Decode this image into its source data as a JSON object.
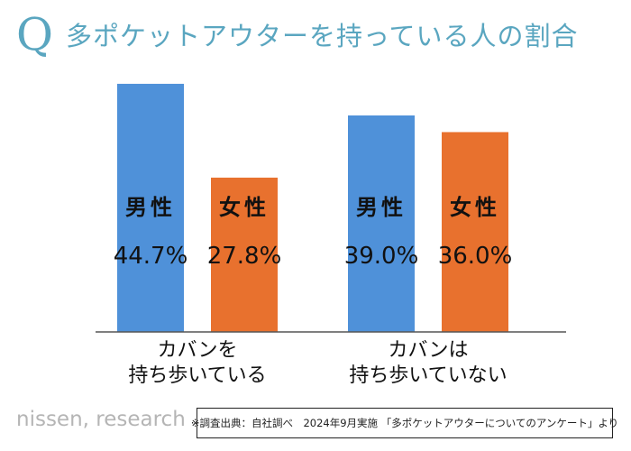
{
  "title": {
    "mark": "Q",
    "text": "多ポケットアウターを持っている人の割合"
  },
  "chart_data": {
    "type": "bar",
    "title": "多ポケットアウターを持っている人の割合",
    "categories": [
      {
        "lines": [
          "カバンを",
          "持ち歩いている"
        ]
      },
      {
        "lines": [
          "カバンは",
          "持ち歩いていない"
        ]
      }
    ],
    "series": [
      {
        "name": "男性",
        "color": "#4f91d9",
        "values": [
          44.7,
          39.0
        ],
        "value_labels": [
          "44.7%",
          "39.0%"
        ]
      },
      {
        "name": "女性",
        "color": "#e8712e",
        "values": [
          27.8,
          36.0
        ],
        "value_labels": [
          "27.8%",
          "36.0%"
        ]
      }
    ],
    "ylim": [
      0,
      52
    ],
    "unit": "%",
    "grid": false,
    "legend": "in-bar labels"
  },
  "footer": {
    "brand": "nissen, research",
    "source": "※調査出典：自社調べ　2024年9月実施 「多ポケットアウターについてのアンケート」より"
  }
}
